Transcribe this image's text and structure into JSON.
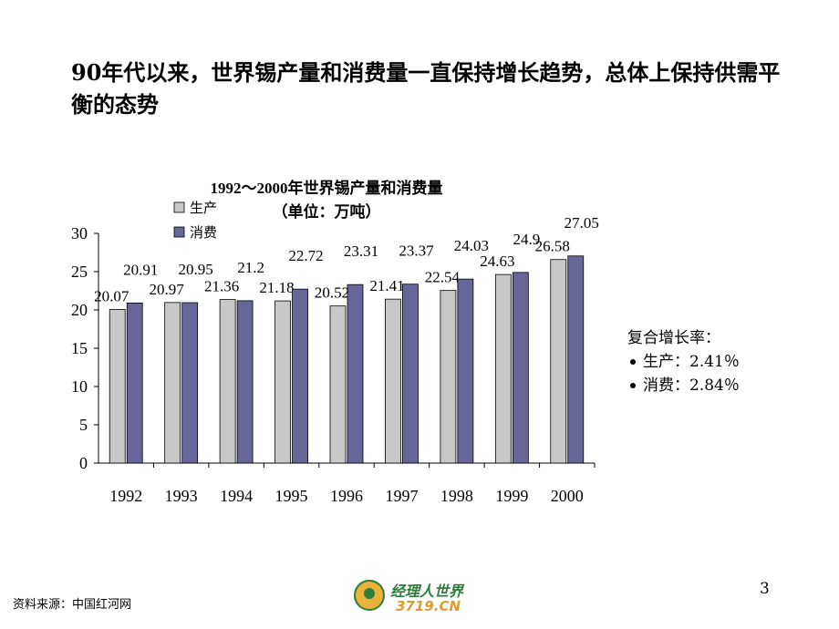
{
  "headline": "90年代以来，世界锡产量和消费量一直保持增长趋势，总体上保持供需平衡的态势",
  "growth_note": {
    "title": "复合增长率：",
    "items": [
      "生产：2.41％",
      "消费：2.84％"
    ]
  },
  "source": "资料来源：中国红河网",
  "page_number": "3",
  "logo": {
    "line1": "经理人世界",
    "line2": "3719.CN"
  },
  "colors": {
    "production": "#c8c8c8",
    "consumption": "#666699"
  },
  "chart_data": {
    "type": "bar",
    "title": "1992～2000年世界锡产量和消费量",
    "subtitle": "（单位：万吨）",
    "categories": [
      "1992",
      "1993",
      "1994",
      "1995",
      "1996",
      "1997",
      "1998",
      "1999",
      "2000"
    ],
    "series": [
      {
        "name": "生产",
        "values": [
          20.07,
          20.97,
          21.36,
          21.18,
          20.52,
          21.41,
          22.54,
          24.63,
          26.58
        ],
        "labels": [
          "20.07",
          "20.97",
          "21.36",
          "21.18",
          "20.52",
          "21.41",
          "22.54",
          "24.63",
          "26.58"
        ]
      },
      {
        "name": "消费",
        "values": [
          20.91,
          20.95,
          21.2,
          22.72,
          23.31,
          23.37,
          24.03,
          24.9,
          27.05
        ],
        "labels": [
          "20.91",
          "20.95",
          "21.2",
          "22.72",
          "23.31",
          "23.37",
          "24.03",
          "24.9",
          "27.05"
        ]
      }
    ],
    "ylim": [
      0,
      30
    ],
    "yticks": [
      "0",
      "5",
      "10",
      "15",
      "20",
      "25",
      "30"
    ],
    "legend_position": "top-left",
    "grid": false
  }
}
